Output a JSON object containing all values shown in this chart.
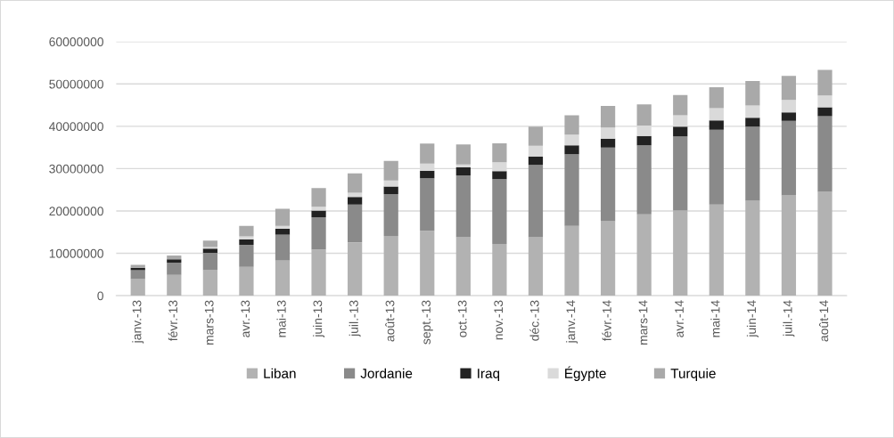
{
  "chart_data": {
    "type": "bar",
    "stacked": true,
    "categories": [
      "janv.-13",
      "févr.-13",
      "mars-13",
      "avr.-13",
      "mai-13",
      "juin-13",
      "juil.-13",
      "août-13",
      "sept.-13",
      "oct.-13",
      "nov.-13",
      "déc.-13",
      "janv.-14",
      "févr.-14",
      "mars-14",
      "avr.-14",
      "mai-14",
      "juin-14",
      "juil.-14",
      "août-14"
    ],
    "series": [
      {
        "name": "Liban",
        "color": "#b2b2b2",
        "values": [
          3900000,
          4900000,
          6000000,
          6800000,
          8300000,
          10900000,
          12600000,
          14100000,
          15300000,
          13800000,
          12200000,
          13800000,
          16500000,
          17600000,
          19200000,
          20100000,
          21500000,
          22400000,
          23700000,
          24500000
        ]
      },
      {
        "name": "Jordanie",
        "color": "#8a8a8a",
        "values": [
          2100000,
          2900000,
          4100000,
          5200000,
          6100000,
          7600000,
          8900000,
          9900000,
          12400000,
          14600000,
          15300000,
          17100000,
          16900000,
          17400000,
          16300000,
          17500000,
          17700000,
          17500000,
          17600000,
          17900000
        ]
      },
      {
        "name": "Iraq",
        "color": "#222222",
        "values": [
          600000,
          800000,
          1000000,
          1300000,
          1400000,
          1600000,
          1800000,
          1800000,
          1800000,
          1900000,
          1900000,
          2000000,
          2100000,
          2100000,
          2200000,
          2300000,
          2200000,
          2100000,
          2000000,
          2100000
        ]
      },
      {
        "name": "Égypte",
        "color": "#dadada",
        "values": [
          null,
          null,
          400000,
          700000,
          700000,
          900000,
          1000000,
          1400000,
          1700000,
          700000,
          2100000,
          2500000,
          2500000,
          2600000,
          2500000,
          2700000,
          2900000,
          2900000,
          2900000,
          2800000
        ]
      },
      {
        "name": "Turquie",
        "color": "#a9a9a9",
        "values": [
          700000,
          900000,
          1500000,
          2500000,
          4000000,
          4400000,
          4600000,
          4600000,
          4700000,
          4700000,
          4500000,
          4500000,
          4600000,
          5100000,
          5000000,
          4800000,
          4900000,
          5800000,
          5700000,
          6000000
        ]
      }
    ],
    "ylim": [
      0,
      60000000
    ],
    "yticks": [
      0,
      10000000,
      20000000,
      30000000,
      40000000,
      50000000,
      60000000
    ],
    "grid": "y",
    "legend": "bottom"
  }
}
